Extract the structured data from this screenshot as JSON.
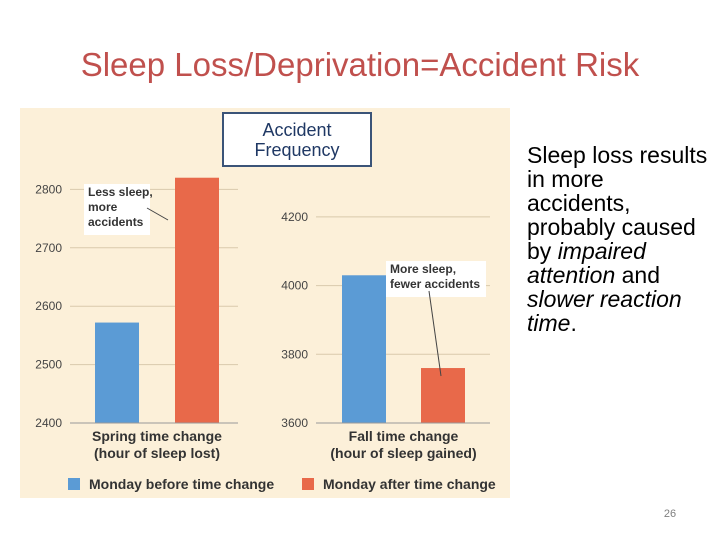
{
  "slide": {
    "title": "Sleep Loss/Deprivation=Accident Risk",
    "box_label_line1": "Accident",
    "box_label_line2": "Frequency",
    "body_parts": [
      {
        "text": "Sleep loss results in more accidents, probably caused by ",
        "italic": false
      },
      {
        "text": "impaired attention",
        "italic": true
      },
      {
        "text": " and ",
        "italic": false
      },
      {
        "text": "slower reaction time",
        "italic": true
      },
      {
        "text": ".",
        "italic": false
      }
    ],
    "slide_number": "26"
  },
  "colors": {
    "title": "#c0504d",
    "panel_bg": "#fcf0d9",
    "before": "#5b9bd5",
    "after": "#e8694a",
    "grid": "#d9c9ac"
  },
  "chart_data": [
    {
      "type": "bar",
      "category_label_line1": "Spring time change",
      "category_label_line2": "(hour of sleep lost)",
      "series": [
        {
          "name": "Monday before time change",
          "value": 2572
        },
        {
          "name": "Monday after time change",
          "value": 2820
        }
      ],
      "ylim": [
        2400,
        2900
      ],
      "yticks": [
        2400,
        2500,
        2600,
        2700,
        2800
      ],
      "annotation_lines": [
        "Less sleep,",
        "more",
        "accidents"
      ]
    },
    {
      "type": "bar",
      "category_label_line1": "Fall time change",
      "category_label_line2": "(hour of sleep gained)",
      "series": [
        {
          "name": "Monday before time change",
          "value": 4030
        },
        {
          "name": "Monday after time change",
          "value": 3760
        }
      ],
      "ylim": [
        3600,
        4450
      ],
      "yticks": [
        3600,
        3800,
        4000,
        4200
      ],
      "annotation_lines": [
        "More sleep,",
        "fewer accidents"
      ]
    }
  ],
  "legend": [
    "Monday before time change",
    "Monday after time change"
  ]
}
